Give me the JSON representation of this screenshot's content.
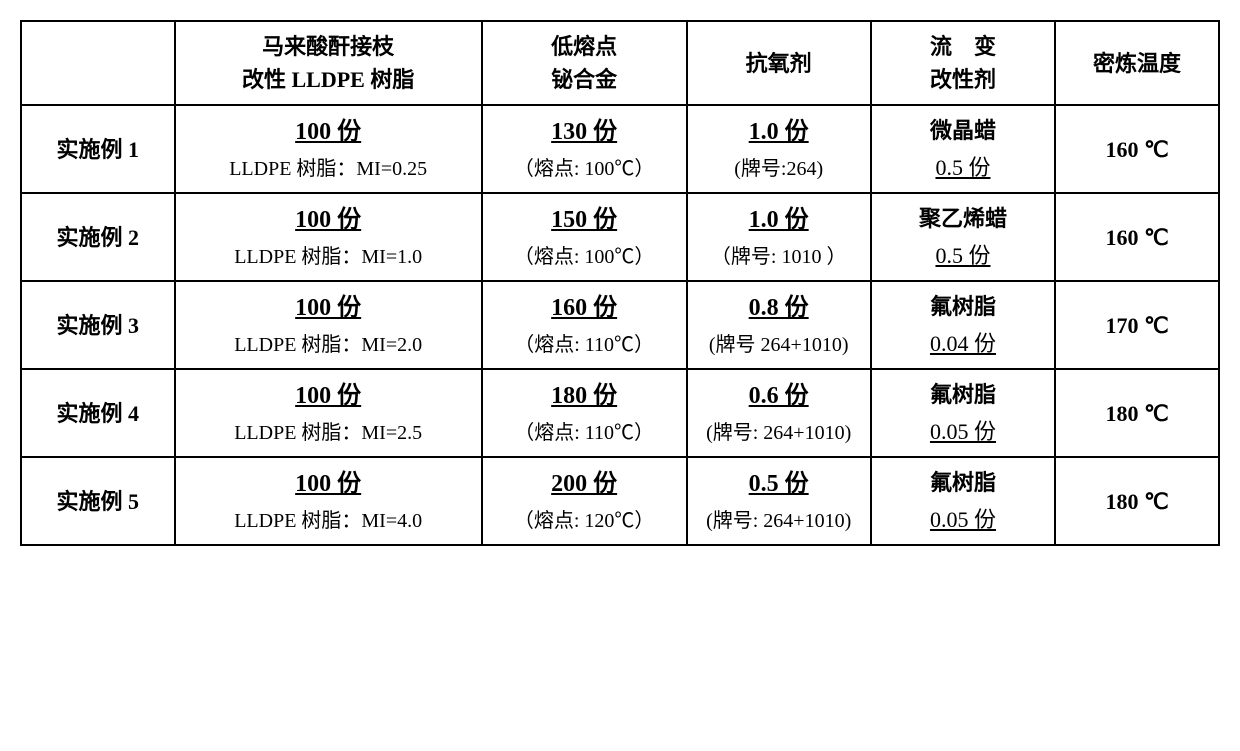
{
  "headers": {
    "h0": "",
    "h1_line1": "马来酸酐接枝",
    "h1_line2": "改性 LLDPE 树脂",
    "h2_line1": "低熔点",
    "h2_line2": "铋合金",
    "h3": "抗氧剂",
    "h4_line1": "流　变",
    "h4_line2": "改性剂",
    "h5": "密炼温度"
  },
  "rows": [
    {
      "label": "实施例 1",
      "resin_main": "100 份",
      "resin_sub": "LLDPE 树脂：MI=0.25",
      "alloy_main": "130 份",
      "alloy_sub": "（熔点: 100℃）",
      "antiox_main": "1.0 份",
      "antiox_sub": "(牌号:264)",
      "mod_name": "微晶蜡",
      "mod_amt": "0.5 份",
      "temp": "160 ℃"
    },
    {
      "label": "实施例 2",
      "resin_main": "100 份",
      "resin_sub": "LLDPE 树脂：MI=1.0",
      "alloy_main": "150 份",
      "alloy_sub": "（熔点: 100℃）",
      "antiox_main": "1.0 份",
      "antiox_sub": "（牌号: 1010 ）",
      "mod_name": "聚乙烯蜡",
      "mod_amt": "0.5 份",
      "temp": "160 ℃"
    },
    {
      "label": "实施例 3",
      "resin_main": "100 份",
      "resin_sub": "LLDPE 树脂：MI=2.0",
      "alloy_main": "160 份",
      "alloy_sub": "（熔点: 110℃）",
      "antiox_main": "0.8 份",
      "antiox_sub": "(牌号 264+1010)",
      "mod_name": "氟树脂",
      "mod_amt": "0.04 份",
      "temp": "170 ℃"
    },
    {
      "label": "实施例 4",
      "resin_main": "100 份",
      "resin_sub": "LLDPE 树脂：MI=2.5",
      "alloy_main": "180 份",
      "alloy_sub": "（熔点: 110℃）",
      "antiox_main": "0.6 份",
      "antiox_sub": "(牌号: 264+1010)",
      "mod_name": "氟树脂",
      "mod_amt": "0.05 份",
      "temp": "180 ℃"
    },
    {
      "label": "实施例 5",
      "resin_main": "100 份",
      "resin_sub": "LLDPE 树脂：MI=4.0",
      "alloy_main": "200 份",
      "alloy_sub": "（熔点: 120℃）",
      "antiox_main": "0.5 份",
      "antiox_sub": "(牌号: 264+1010)",
      "mod_name": "氟树脂",
      "mod_amt": "0.05 份",
      "temp": "180 ℃"
    }
  ]
}
